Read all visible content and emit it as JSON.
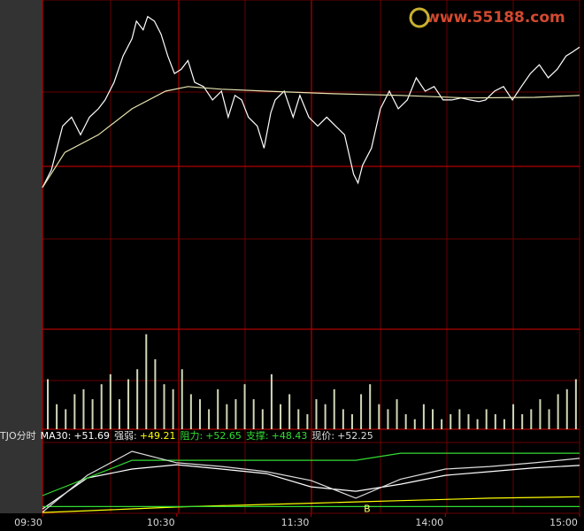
{
  "watermark": "www.55188.com",
  "chart_data": [
    {
      "type": "line",
      "x": [
        0,
        4,
        7,
        9,
        13,
        17,
        21,
        25,
        28,
        32,
        36,
        40,
        42,
        45,
        47,
        50,
        53,
        56,
        59,
        62,
        65,
        68,
        72,
        76,
        80,
        83,
        86,
        89,
        92,
        96,
        99,
        102,
        104,
        108,
        112,
        115,
        119,
        123,
        127,
        131,
        135,
        139,
        141,
        143,
        147,
        151,
        155,
        159,
        163,
        167,
        171,
        175,
        179,
        183,
        187,
        191,
        195,
        198,
        202,
        206,
        210,
        214,
        218,
        222,
        226,
        230,
        234,
        237,
        240
      ],
      "xlim": [
        0,
        240
      ],
      "ylim": [
        0,
        100
      ],
      "series": [
        {
          "color": "#ffffff",
          "values": [
            43.5,
            48.9,
            57.0,
            62.4,
            65.1,
            59.7,
            65.1,
            67.7,
            70.4,
            75.8,
            83.9,
            89.2,
            94.6,
            91.9,
            96.0,
            94.6,
            90.6,
            83.9,
            78.5,
            79.8,
            82.5,
            75.8,
            74.5,
            70.4,
            73.1,
            65.1,
            71.8,
            70.4,
            65.1,
            62.4,
            55.6,
            66.4,
            70.4,
            73.1,
            65.1,
            71.8,
            65.1,
            62.4,
            65.1,
            62.4,
            59.7,
            47.6,
            44.9,
            50.3,
            55.6,
            67.7,
            73.1,
            67.7,
            70.4,
            77.2,
            73.1,
            74.5,
            70.4,
            70.4,
            71.0,
            70.4,
            69.9,
            70.4,
            73.1,
            74.5,
            70.4,
            74.5,
            78.5,
            81.2,
            77.2,
            79.8,
            83.9,
            85.2,
            86.6
          ]
        },
        {
          "color": "#e8e4b0",
          "x": [
            0,
            10,
            25,
            40,
            55,
            65,
            80,
            100,
            130,
            160,
            190,
            220,
            240
          ],
          "values": [
            43.5,
            54.3,
            59.7,
            67.7,
            73.1,
            74.5,
            73.7,
            73.1,
            72.3,
            71.8,
            71.0,
            71.2,
            71.8
          ]
        }
      ]
    },
    {
      "type": "bar",
      "x": [
        0,
        4,
        8,
        12,
        16,
        20,
        24,
        28,
        32,
        36,
        40,
        44,
        48,
        52,
        56,
        60,
        64,
        68,
        72,
        76,
        80,
        84,
        88,
        92,
        96,
        100,
        104,
        108,
        112,
        116,
        120,
        124,
        128,
        132,
        136,
        140,
        144,
        148,
        152,
        156,
        160,
        164,
        168,
        172,
        176,
        180,
        184,
        188,
        192,
        196,
        200,
        204,
        208,
        212,
        216,
        220,
        224,
        228,
        232,
        236
      ],
      "xlim": [
        0,
        240
      ],
      "ylim": [
        0,
        100
      ],
      "color": "#cfd8b8",
      "values": [
        50,
        25,
        20,
        35,
        40,
        30,
        45,
        55,
        30,
        50,
        60,
        95,
        70,
        45,
        40,
        60,
        35,
        30,
        20,
        40,
        25,
        30,
        45,
        30,
        20,
        55,
        25,
        35,
        20,
        15,
        30,
        25,
        40,
        20,
        15,
        35,
        45,
        25,
        20,
        30,
        15,
        10,
        25,
        20,
        10,
        15,
        20,
        15,
        10,
        20,
        15,
        10,
        25,
        15,
        20,
        30,
        20,
        35,
        40,
        50
      ]
    },
    {
      "type": "line",
      "title": "TJO分时",
      "x": [
        0,
        20,
        40,
        60,
        80,
        100,
        120,
        140,
        160,
        180,
        200,
        220,
        240
      ],
      "xlim": [
        0,
        240
      ],
      "ylim": [
        47.9,
        53.5
      ],
      "xticks": [
        {
          "value": 0,
          "label": "09:30"
        },
        {
          "value": 60,
          "label": "10:30"
        },
        {
          "value": 120,
          "label": "11:30"
        },
        {
          "value": 180,
          "label": "14:00"
        },
        {
          "value": 240,
          "label": "15:00"
        }
      ],
      "series": [
        {
          "name": "MA30:",
          "color": "#ffffff",
          "latest": 51.69,
          "latest_label": "+51.69",
          "values": [
            48.24,
            50.69,
            51.4,
            51.74,
            51.4,
            51.04,
            49.99,
            49.64,
            50.2,
            50.9,
            51.2,
            51.5,
            51.69
          ]
        },
        {
          "name": "强弱:",
          "color": "#ffff00",
          "latest": 49.21,
          "latest_label": "+49.21",
          "values": [
            47.96,
            48.1,
            48.25,
            48.4,
            48.5,
            48.6,
            48.7,
            48.8,
            48.9,
            49.0,
            49.1,
            49.15,
            49.21
          ]
        },
        {
          "name": "阻力:",
          "color": "#33dd33",
          "latest": 52.65,
          "latest_label": "+52.65",
          "values": [
            49.3,
            50.69,
            52.09,
            52.09,
            52.09,
            52.09,
            52.09,
            52.09,
            52.65,
            52.65,
            52.65,
            52.65,
            52.65
          ]
        },
        {
          "name": "支撑:",
          "color": "#33dd33",
          "latest": 48.43,
          "latest_label": "+48.43",
          "values": [
            48.43,
            48.43,
            48.43,
            48.43,
            48.43,
            48.43,
            48.43,
            48.43,
            48.43,
            48.43,
            48.43,
            48.43,
            48.43
          ]
        },
        {
          "name": "现价:",
          "color": "#dddddd",
          "latest": 52.25,
          "latest_label": "+52.25",
          "values": [
            48.0,
            50.9,
            52.8,
            51.9,
            51.6,
            51.2,
            50.5,
            49.1,
            50.6,
            51.4,
            51.6,
            51.9,
            52.25
          ]
        }
      ],
      "annotations": [
        {
          "text": "B",
          "x": 142,
          "y": 48.2
        }
      ]
    }
  ]
}
